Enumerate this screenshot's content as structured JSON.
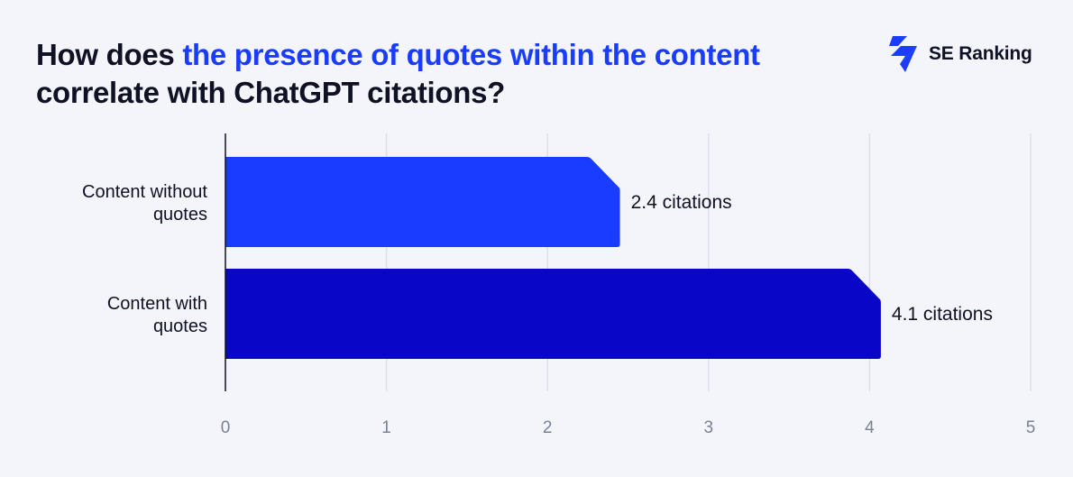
{
  "header": {
    "title_part1": "How does ",
    "title_highlight": "the presence of quotes within the content",
    "title_part2": " correlate with ChatGPT citations?",
    "accent_color": "#1a3cff"
  },
  "brand": {
    "name": "SE Ranking",
    "icon": "se-ranking-lightning-icon"
  },
  "chart_data": {
    "type": "bar",
    "orientation": "horizontal",
    "categories": [
      "Content without quotes",
      "Content with quotes"
    ],
    "values": [
      2.45,
      4.07
    ],
    "value_labels": [
      "2.4 citations",
      "4.1 citations"
    ],
    "colors": [
      "#1a3cff",
      "#0a06c8"
    ],
    "xlim": [
      0,
      5
    ],
    "xticks": [
      "0",
      "1",
      "2",
      "3",
      "4",
      "5"
    ],
    "grid": true,
    "xlabel": "",
    "ylabel": ""
  }
}
